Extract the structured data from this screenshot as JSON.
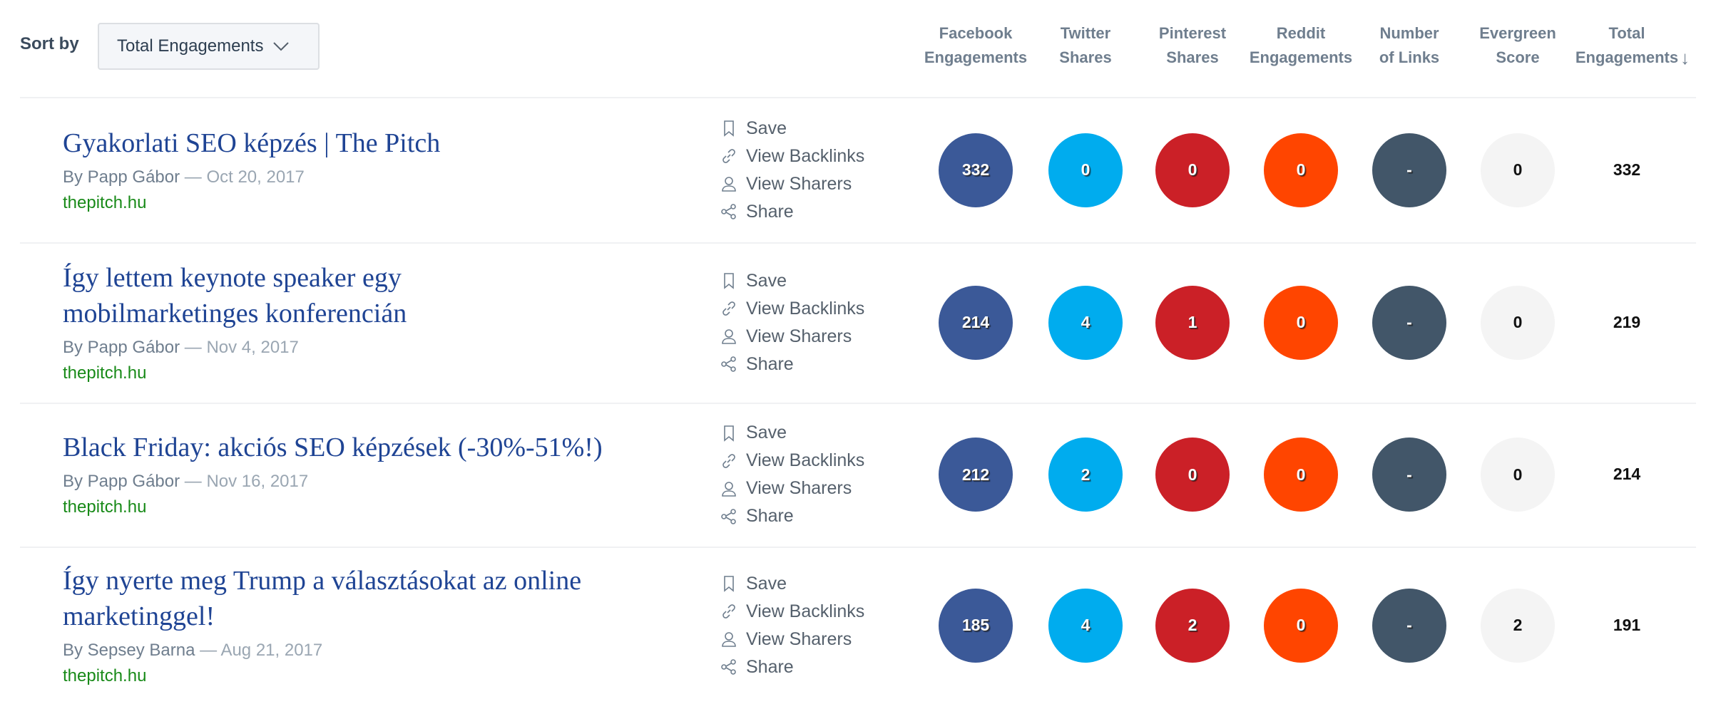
{
  "sort": {
    "label": "Sort by",
    "selected": "Total Engagements"
  },
  "columns": [
    {
      "label": "Facebook\nEngagements"
    },
    {
      "label": "Twitter\nShares"
    },
    {
      "label": "Pinterest\nShares"
    },
    {
      "label": "Reddit\nEngagements"
    },
    {
      "label": "Number\nof Links"
    },
    {
      "label": "Evergreen\nScore"
    },
    {
      "label": "Total\nEngagements",
      "sort_arrow": "↓"
    }
  ],
  "colors": {
    "facebook": "#3b5998",
    "twitter": "#00acee",
    "pinterest": "#cb2027",
    "reddit": "#ff4500",
    "links": "#425669",
    "evergreen": "#f4f4f4",
    "title": "#1f4494",
    "domain": "#188a18"
  },
  "actions": {
    "save": "Save",
    "backlinks": "View Backlinks",
    "sharers": "View Sharers",
    "share": "Share"
  },
  "rows": [
    {
      "title": "Gyakorlati SEO képzés | The Pitch",
      "author": "By Papp Gábor",
      "date": "— Oct 20, 2017",
      "domain": "thepitch.hu",
      "facebook": "332",
      "twitter": "0",
      "pinterest": "0",
      "reddit": "0",
      "links": "-",
      "evergreen": "0",
      "total": "332"
    },
    {
      "title": "Így lettem keynote speaker egy\nmobilmarketinges konferencián",
      "author": "By Papp Gábor",
      "date": "— Nov 4, 2017",
      "domain": "thepitch.hu",
      "facebook": "214",
      "twitter": "4",
      "pinterest": "1",
      "reddit": "0",
      "links": "-",
      "evergreen": "0",
      "total": "219"
    },
    {
      "title": "Black Friday: akciós SEO képzések (-30%-51%!)",
      "author": "By Papp Gábor",
      "date": "— Nov 16, 2017",
      "domain": "thepitch.hu",
      "facebook": "212",
      "twitter": "2",
      "pinterest": "0",
      "reddit": "0",
      "links": "-",
      "evergreen": "0",
      "total": "214"
    },
    {
      "title": "Így nyerte meg Trump a választásokat az online\nmarketinggel!",
      "author": "By Sepsey Barna",
      "date": "— Aug 21, 2017",
      "domain": "thepitch.hu",
      "facebook": "185",
      "twitter": "4",
      "pinterest": "2",
      "reddit": "0",
      "links": "-",
      "evergreen": "2",
      "total": "191"
    }
  ]
}
